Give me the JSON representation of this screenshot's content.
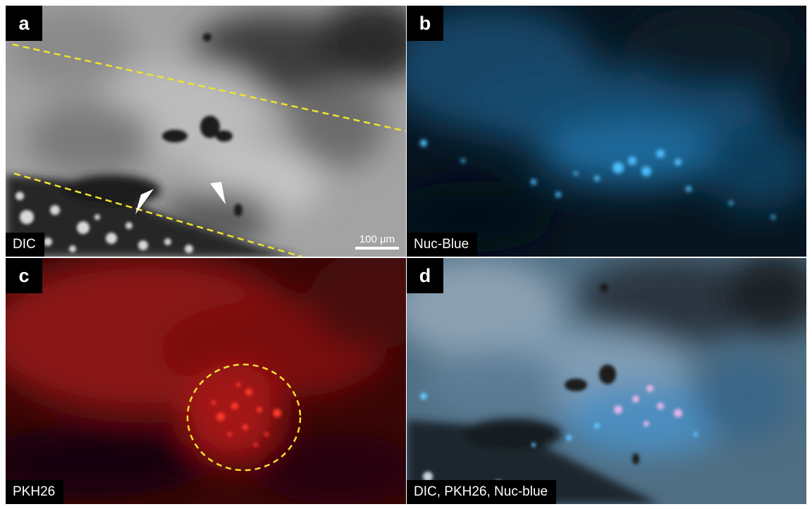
{
  "panels": [
    {
      "letter": "a",
      "label": "DIC"
    },
    {
      "letter": "b",
      "label": "Nuc-Blue"
    },
    {
      "letter": "c",
      "label": "PKH26"
    },
    {
      "letter": "d",
      "label": "DIC, PKH26, Nuc-blue"
    }
  ],
  "scale_bar": {
    "label": "100 μm"
  },
  "colors": {
    "dashed_line": "#f2e22a",
    "arrowheads": "#ffffff",
    "nuc_blue": "#1a8fd6",
    "pkh26_red": "#e01212"
  }
}
